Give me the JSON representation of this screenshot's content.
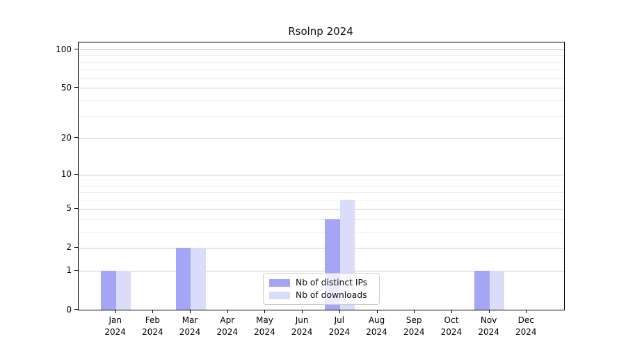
{
  "title": "Rsolnp 2024",
  "colors": {
    "distinct_ips": "#a5a5f5",
    "downloads": "#dbdbfa",
    "grid_major": "#c9c9c9",
    "grid_minor": "#ececec",
    "axis": "#000000",
    "legend_border": "#cccccc"
  },
  "legend": {
    "items": [
      {
        "label": "Nb of distinct IPs",
        "color_key": "distinct_ips"
      },
      {
        "label": "Nb of downloads",
        "color_key": "downloads"
      }
    ]
  },
  "y_axis": {
    "tick_labels": [
      "0",
      "1",
      "2",
      "5",
      "10",
      "20",
      "50",
      "100"
    ],
    "tick_values": [
      0,
      1,
      2,
      5,
      10,
      20,
      50,
      100
    ],
    "minor_gridline_values": [
      3,
      4,
      6,
      7,
      8,
      9,
      30,
      40,
      60,
      70,
      80,
      90
    ],
    "scale": "log1p"
  },
  "x_axis": {
    "tick_labels": [
      "Jan\n2024",
      "Feb\n2024",
      "Mar\n2024",
      "Apr\n2024",
      "May\n2024",
      "Jun\n2024",
      "Jul\n2024",
      "Aug\n2024",
      "Sep\n2024",
      "Oct\n2024",
      "Nov\n2024",
      "Dec\n2024"
    ]
  },
  "chart_data": {
    "type": "bar",
    "title": "Rsolnp 2024",
    "categories": [
      "Jan 2024",
      "Feb 2024",
      "Mar 2024",
      "Apr 2024",
      "May 2024",
      "Jun 2024",
      "Jul 2024",
      "Aug 2024",
      "Sep 2024",
      "Oct 2024",
      "Nov 2024",
      "Dec 2024"
    ],
    "series": [
      {
        "name": "Nb of distinct IPs",
        "color": "#a5a5f5",
        "values": [
          1,
          0,
          2,
          0,
          0,
          0,
          4,
          0,
          0,
          0,
          1,
          0
        ]
      },
      {
        "name": "Nb of downloads",
        "color": "#dbdbfa",
        "values": [
          1,
          0,
          2,
          0,
          0,
          0,
          6,
          0,
          0,
          0,
          1,
          0
        ]
      }
    ],
    "xlabel": "",
    "ylabel": "",
    "yticks": [
      0,
      1,
      2,
      5,
      10,
      20,
      50,
      100
    ],
    "yscale": "log1p",
    "ylim": [
      0,
      110
    ],
    "grid": "horizontal",
    "legend_position": "lower-center-inside"
  }
}
